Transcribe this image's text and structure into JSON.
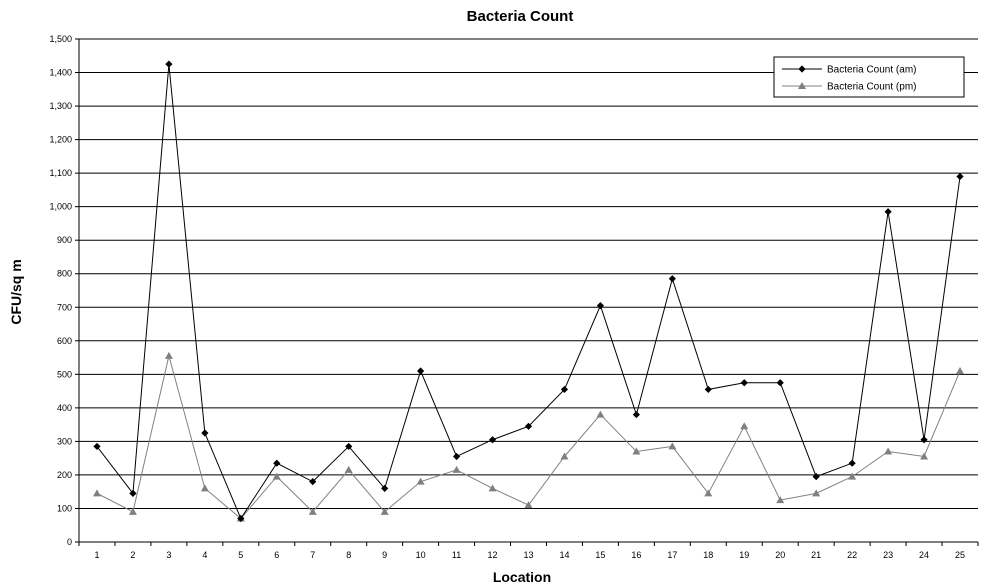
{
  "chart_data": {
    "type": "line",
    "title": "Bacteria Count",
    "xlabel": "Location",
    "ylabel": "CFU/sq m",
    "categories": [
      "1",
      "2",
      "3",
      "4",
      "5",
      "6",
      "7",
      "8",
      "9",
      "10",
      "11",
      "12",
      "13",
      "14",
      "15",
      "16",
      "17",
      "18",
      "19",
      "20",
      "21",
      "22",
      "23",
      "24",
      "25"
    ],
    "ylim": [
      0,
      1500
    ],
    "yticks": [
      0,
      100,
      200,
      300,
      400,
      500,
      600,
      700,
      800,
      900,
      1000,
      1100,
      1200,
      1300,
      1400,
      1500
    ],
    "ytick_labels": [
      "0",
      "100",
      "200",
      "300",
      "400",
      "500",
      "600",
      "700",
      "800",
      "900",
      "1,000",
      "1,100",
      "1,200",
      "1,300",
      "1,400",
      "1,500"
    ],
    "grid": "horizontal",
    "legend_position": "top-right",
    "series": [
      {
        "name": "Bacteria Count (am)",
        "color": "#000000",
        "marker": "diamond",
        "values": [
          285,
          145,
          1425,
          325,
          70,
          235,
          180,
          285,
          160,
          510,
          255,
          305,
          345,
          455,
          705,
          380,
          785,
          455,
          475,
          475,
          195,
          235,
          985,
          305,
          1090
        ]
      },
      {
        "name": "Bacteria Count (pm)",
        "color": "#808080",
        "marker": "triangle",
        "values": [
          145,
          90,
          555,
          160,
          70,
          195,
          90,
          215,
          90,
          180,
          215,
          160,
          110,
          255,
          380,
          270,
          285,
          145,
          345,
          125,
          145,
          195,
          270,
          255,
          510
        ]
      }
    ]
  }
}
